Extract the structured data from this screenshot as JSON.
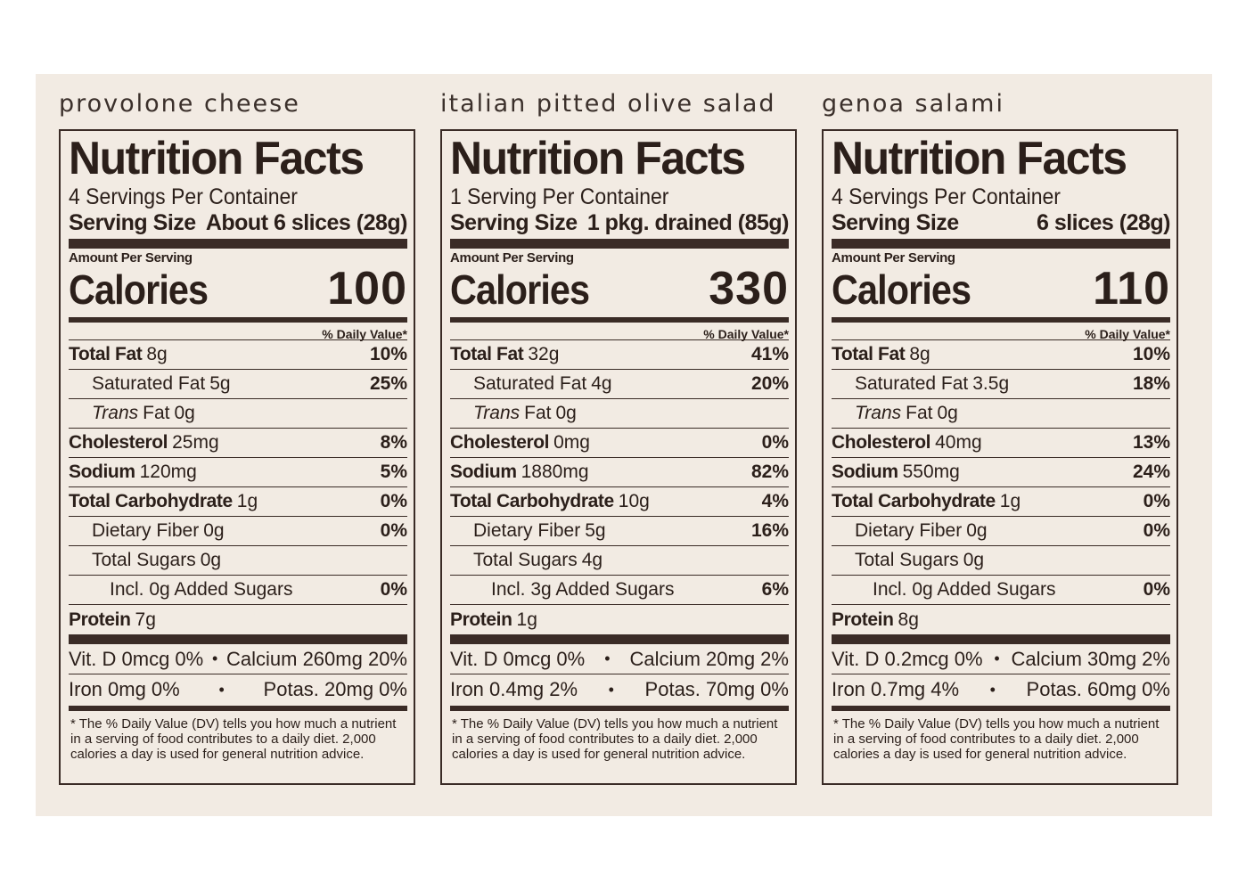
{
  "panels": [
    {
      "product_name": "provolone cheese",
      "title": "Nutrition Facts",
      "servings_per_container": "4 Servings Per Container",
      "serving_size_label": "Serving Size",
      "serving_size_value": "About 6 slices (28g)",
      "amount_per_serving": "Amount Per Serving",
      "calories_label": "Calories",
      "calories_value": "100",
      "daily_value_header": "% Daily Value*",
      "nutrients": [
        {
          "name": "Total Fat",
          "amount": "8g",
          "dv": "10%"
        },
        {
          "name": "Saturated Fat",
          "amount": "5g",
          "dv": "25%"
        },
        {
          "name_italic": "Trans",
          "name": "Fat",
          "amount": "0g",
          "dv": ""
        },
        {
          "name": "Cholesterol",
          "amount": "25mg",
          "dv": "8%"
        },
        {
          "name": "Sodium",
          "amount": "120mg",
          "dv": "5%"
        },
        {
          "name": "Total Carbohydrate",
          "amount": "1g",
          "dv": "0%"
        },
        {
          "name": "Dietary Fiber",
          "amount": "0g",
          "dv": "0%"
        },
        {
          "name": "Total Sugars",
          "amount": "0g",
          "dv": ""
        },
        {
          "name": "Incl. 0g Added Sugars",
          "amount": "",
          "dv": "0%"
        },
        {
          "name": "Protein",
          "amount": "7g",
          "dv": ""
        }
      ],
      "vitamins": [
        {
          "left": "Vit. D 0mcg 0%",
          "right": "Calcium 260mg 20%"
        },
        {
          "left": "Iron 0mg 0%",
          "right": "Potas. 20mg 0%"
        }
      ],
      "bullet": "•",
      "footnote": "* The % Daily Value (DV) tells you how much a nutrient in a serving of food contributes to a daily diet. 2,000 calories a day is used for general nutrition advice."
    },
    {
      "product_name": "italian pitted olive salad",
      "title": "Nutrition Facts",
      "servings_per_container": "1 Serving Per Container",
      "serving_size_label": "Serving Size",
      "serving_size_value": "1 pkg. drained (85g)",
      "amount_per_serving": "Amount Per Serving",
      "calories_label": "Calories",
      "calories_value": "330",
      "daily_value_header": "% Daily Value*",
      "nutrients": [
        {
          "name": "Total Fat",
          "amount": "32g",
          "dv": "41%"
        },
        {
          "name": "Saturated Fat",
          "amount": "4g",
          "dv": "20%"
        },
        {
          "name_italic": "Trans",
          "name": "Fat",
          "amount": "0g",
          "dv": ""
        },
        {
          "name": "Cholesterol",
          "amount": "0mg",
          "dv": "0%"
        },
        {
          "name": "Sodium",
          "amount": "1880mg",
          "dv": "82%"
        },
        {
          "name": "Total Carbohydrate",
          "amount": "10g",
          "dv": "4%"
        },
        {
          "name": "Dietary Fiber",
          "amount": "5g",
          "dv": "16%"
        },
        {
          "name": "Total Sugars",
          "amount": "4g",
          "dv": ""
        },
        {
          "name": "Incl. 3g Added Sugars",
          "amount": "",
          "dv": "6%"
        },
        {
          "name": "Protein",
          "amount": "1g",
          "dv": ""
        }
      ],
      "vitamins": [
        {
          "left": "Vit. D 0mcg 0%",
          "right": "Calcium 20mg 2%"
        },
        {
          "left": "Iron 0.4mg 2%",
          "right": "Potas. 70mg 0%"
        }
      ],
      "bullet": "•",
      "footnote": "* The % Daily Value (DV) tells you how much a nutrient in a serving of food contributes to a daily diet. 2,000 calories a day is used for general nutrition advice."
    },
    {
      "product_name": "genoa salami",
      "title": "Nutrition Facts",
      "servings_per_container": "4 Servings Per Container",
      "serving_size_label": "Serving Size",
      "serving_size_value": "6 slices (28g)",
      "amount_per_serving": "Amount Per Serving",
      "calories_label": "Calories",
      "calories_value": "110",
      "daily_value_header": "% Daily Value*",
      "nutrients": [
        {
          "name": "Total Fat",
          "amount": "8g",
          "dv": "10%"
        },
        {
          "name": "Saturated Fat",
          "amount": "3.5g",
          "dv": "18%"
        },
        {
          "name_italic": "Trans",
          "name": "Fat",
          "amount": "0g",
          "dv": ""
        },
        {
          "name": "Cholesterol",
          "amount": "40mg",
          "dv": "13%"
        },
        {
          "name": "Sodium",
          "amount": "550mg",
          "dv": "24%"
        },
        {
          "name": "Total Carbohydrate",
          "amount": "1g",
          "dv": "0%"
        },
        {
          "name": "Dietary Fiber",
          "amount": "0g",
          "dv": "0%"
        },
        {
          "name": "Total Sugars",
          "amount": "0g",
          "dv": ""
        },
        {
          "name": "Incl. 0g Added Sugars",
          "amount": "",
          "dv": "0%"
        },
        {
          "name": "Protein",
          "amount": "8g",
          "dv": ""
        }
      ],
      "vitamins": [
        {
          "left": "Vit. D 0.2mcg 0%",
          "right": "Calcium 30mg 2%"
        },
        {
          "left": "Iron 0.7mg 4%",
          "right": "Potas. 60mg 0%"
        }
      ],
      "bullet": "•",
      "footnote": "* The % Daily Value (DV) tells you how much a nutrient in a serving of food contributes to a daily diet. 2,000 calories a day is used for general nutrition advice."
    }
  ]
}
